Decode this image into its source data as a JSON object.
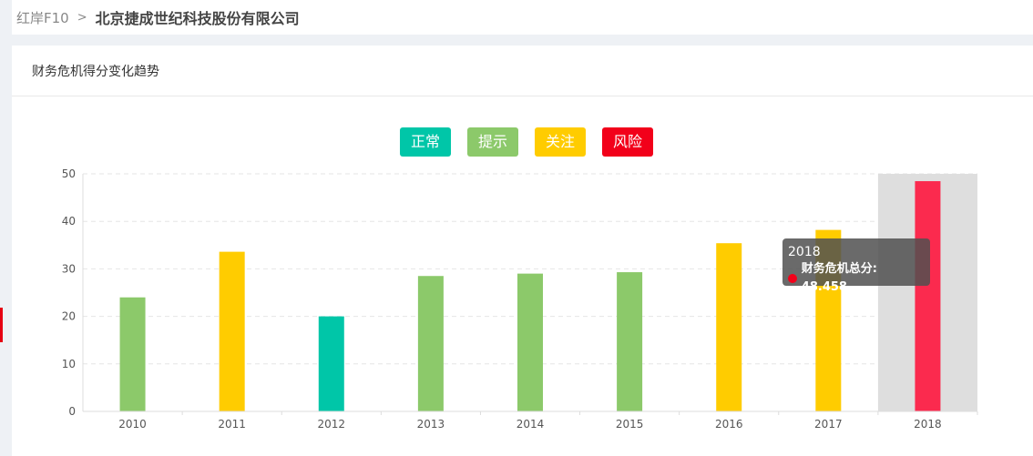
{
  "breadcrumb": {
    "root": "红岸F10",
    "separator": ">",
    "current": "北京捷成世纪科技股份有限公司"
  },
  "panel": {
    "title": "财务危机得分变化趋势"
  },
  "legend": [
    {
      "label": "正常",
      "color": "#00c6a8"
    },
    {
      "label": "提示",
      "color": "#8cc96a"
    },
    {
      "label": "关注",
      "color": "#ffcc00"
    },
    {
      "label": "风险",
      "color": "#f2001a"
    }
  ],
  "chart_data": {
    "type": "bar",
    "categories": [
      "2010",
      "2011",
      "2012",
      "2013",
      "2014",
      "2015",
      "2016",
      "2017",
      "2018"
    ],
    "series": [
      {
        "name": "财务危机总分",
        "values": [
          24.0,
          33.6,
          20.0,
          28.5,
          29.0,
          29.3,
          35.4,
          38.2,
          48.458
        ],
        "colors": [
          "#8cc96a",
          "#ffcc00",
          "#00c6a8",
          "#8cc96a",
          "#8cc96a",
          "#8cc96a",
          "#ffcc00",
          "#ffcc00",
          "#fb2a4e"
        ]
      }
    ],
    "ylim": [
      0,
      50
    ],
    "yticks": [
      "0",
      "10",
      "20",
      "30",
      "40",
      "50"
    ],
    "grid": true,
    "highlighted_category": "2018"
  },
  "tooltip": {
    "title": "2018",
    "label": "财务危机总分: 48.458",
    "dot_color": "#f2001a"
  }
}
